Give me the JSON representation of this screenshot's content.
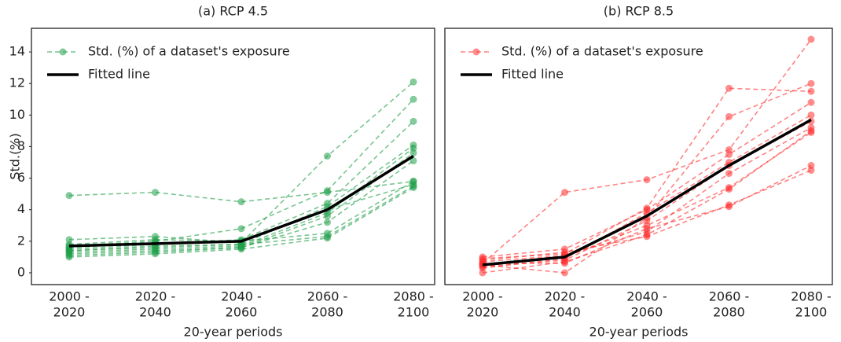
{
  "chart_data": [
    {
      "type": "line",
      "title": "(a) RCP 4.5",
      "x_label": "20-year periods",
      "y_label": "Std.(%)",
      "categories": [
        [
          "2000 -",
          "2020"
        ],
        [
          "2020 -",
          "2040"
        ],
        [
          "2040 -",
          "2060"
        ],
        [
          "2060 -",
          "2080"
        ],
        [
          "2080 -",
          "2100"
        ]
      ],
      "ylim": [
        -0.75,
        15.5
      ],
      "yticks": [
        0,
        2,
        4,
        6,
        8,
        10,
        12,
        14
      ],
      "legend": "upper left",
      "series": [
        {
          "name": "Std. (%) of a dataset's exposure",
          "color": "#1f9e48",
          "style": "dashed",
          "values": [
            4.9,
            5.1,
            4.5,
            5.1,
            5.8
          ]
        },
        {
          "color": "#1f9e48",
          "style": "dashed",
          "values": [
            2.1,
            2.3,
            1.9,
            7.4,
            12.1
          ]
        },
        {
          "color": "#1f9e48",
          "style": "dashed",
          "values": [
            1.7,
            2.0,
            2.8,
            5.2,
            11.0
          ]
        },
        {
          "color": "#1f9e48",
          "style": "dashed",
          "values": [
            1.5,
            1.8,
            2.1,
            4.4,
            9.6
          ]
        },
        {
          "color": "#1f9e48",
          "style": "dashed",
          "values": [
            1.4,
            1.6,
            1.8,
            4.2,
            8.1
          ]
        },
        {
          "color": "#1f9e48",
          "style": "dashed",
          "values": [
            1.3,
            1.5,
            1.7,
            3.8,
            7.9
          ]
        },
        {
          "color": "#1f9e48",
          "style": "dashed",
          "values": [
            1.2,
            1.4,
            1.6,
            3.6,
            7.6
          ]
        },
        {
          "color": "#1f9e48",
          "style": "dashed",
          "values": [
            1.1,
            1.3,
            1.6,
            3.2,
            7.1
          ]
        },
        {
          "color": "#1f9e48",
          "style": "dashed",
          "values": [
            1.6,
            1.9,
            2.0,
            2.5,
            5.8
          ]
        },
        {
          "color": "#1f9e48",
          "style": "dashed",
          "values": [
            1.4,
            1.7,
            1.8,
            2.3,
            5.5
          ]
        },
        {
          "color": "#1f9e48",
          "style": "dashed",
          "values": [
            1.8,
            2.1,
            2.0,
            4.0,
            5.6
          ]
        },
        {
          "color": "#1f9e48",
          "style": "dashed",
          "values": [
            1.0,
            1.2,
            1.5,
            2.2,
            5.4
          ]
        },
        {
          "name": "Fitted line",
          "color": "#000000",
          "style": "solid",
          "values": [
            1.7,
            1.85,
            2.0,
            4.0,
            7.4
          ]
        }
      ]
    },
    {
      "type": "line",
      "title": "(b) RCP 8.5",
      "x_label": "20-year periods",
      "categories": [
        [
          "2000 -",
          "2020"
        ],
        [
          "2020 -",
          "2040"
        ],
        [
          "2040 -",
          "2060"
        ],
        [
          "2060 -",
          "2080"
        ],
        [
          "2080 -",
          "2100"
        ]
      ],
      "ylim": [
        -0.75,
        15.5
      ],
      "legend": "upper left",
      "series": [
        {
          "name": "Std. (%) of a dataset's exposure",
          "color": "#ff3030",
          "style": "dashed",
          "values": [
            0.6,
            5.1,
            5.9,
            7.8,
            14.8
          ]
        },
        {
          "color": "#ff3030",
          "style": "dashed",
          "values": [
            0.9,
            1.2,
            4.1,
            11.7,
            11.5
          ]
        },
        {
          "color": "#ff3030",
          "style": "dashed",
          "values": [
            0.5,
            0.0,
            3.5,
            9.9,
            12.0
          ]
        },
        {
          "color": "#ff3030",
          "style": "dashed",
          "values": [
            1.0,
            1.5,
            4.0,
            7.5,
            10.8
          ]
        },
        {
          "color": "#ff3030",
          "style": "dashed",
          "values": [
            0.3,
            0.9,
            3.8,
            7.0,
            10.0
          ]
        },
        {
          "color": "#ff3030",
          "style": "dashed",
          "values": [
            0.4,
            0.8,
            3.3,
            6.8,
            9.6
          ]
        },
        {
          "color": "#ff3030",
          "style": "dashed",
          "values": [
            0.7,
            1.1,
            2.6,
            6.3,
            9.2
          ]
        },
        {
          "color": "#ff3030",
          "style": "dashed",
          "values": [
            0.0,
            0.7,
            2.4,
            5.3,
            9.0
          ]
        },
        {
          "color": "#ff3030",
          "style": "dashed",
          "values": [
            0.8,
            1.3,
            2.3,
            4.3,
            6.5
          ]
        },
        {
          "color": "#ff3030",
          "style": "dashed",
          "values": [
            0.6,
            0.6,
            2.8,
            4.2,
            6.8
          ]
        },
        {
          "color": "#ff3030",
          "style": "dashed",
          "values": [
            0.5,
            1.0,
            3.0,
            5.4,
            8.9
          ]
        },
        {
          "name": "Fitted line",
          "color": "#000000",
          "style": "solid",
          "values": [
            0.5,
            1.0,
            3.6,
            6.8,
            9.7
          ]
        }
      ]
    }
  ]
}
